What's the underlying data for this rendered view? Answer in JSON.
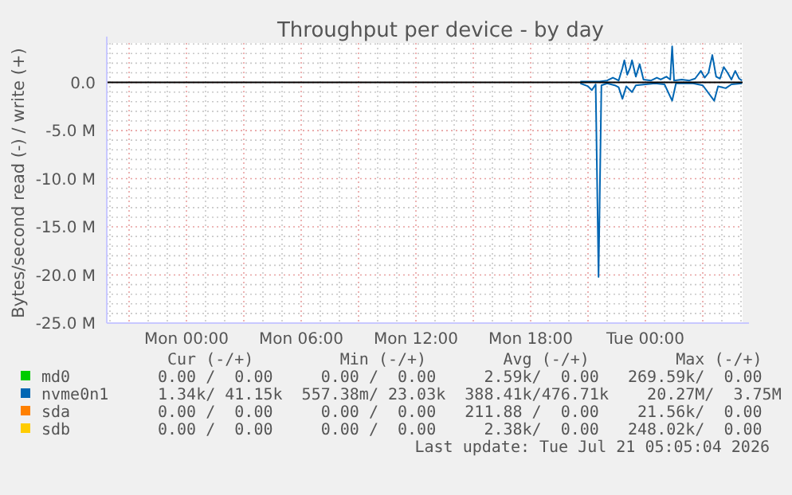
{
  "chart_data": {
    "type": "line",
    "title": "Throughput per device - by day",
    "ylabel": "Bytes/second read (-) / write (+)",
    "xlim": [
      "2026-07-19T19:50",
      "2026-07-21T05:05"
    ],
    "xticks": [
      {
        "value": "2026-07-20T00:00",
        "label": "Mon 00:00"
      },
      {
        "value": "2026-07-20T06:00",
        "label": "Mon 06:00"
      },
      {
        "value": "2026-07-20T12:00",
        "label": "Mon 12:00"
      },
      {
        "value": "2026-07-20T18:00",
        "label": "Mon 18:00"
      },
      {
        "value": "2026-07-21T00:00",
        "label": "Tue 00:00"
      }
    ],
    "ylim": [
      -25,
      4.1
    ],
    "yticks": [
      {
        "value": 0,
        "label": "0.0"
      },
      {
        "value": -5,
        "label": "-5.0 M"
      },
      {
        "value": -10,
        "label": "-10.0 M"
      },
      {
        "value": -15,
        "label": "-15.0 M"
      },
      {
        "value": -20,
        "label": "-20.0 M"
      },
      {
        "value": -25,
        "label": "-25.0 M"
      }
    ],
    "grid": true,
    "legend": "bottom",
    "line_style": "solid",
    "marker": "none",
    "ref_lines": [
      {
        "axis": "y",
        "value": 0,
        "color": "#000000"
      }
    ],
    "series": [
      {
        "name": "md0",
        "color": "#00cc00",
        "values": [
          null
        ]
      },
      {
        "color": "#0066b3",
        "x": [
          "2026-07-20T20:36",
          "2026-07-20T21:00",
          "2026-07-20T21:12",
          "2026-07-20T21:24",
          "2026-07-20T21:33",
          "2026-07-20T21:42",
          "2026-07-20T22:00",
          "2026-07-20T22:24",
          "2026-07-20T22:36",
          "2026-07-20T22:48",
          "2026-07-20T23:00",
          "2026-07-20T23:18",
          "2026-07-20T23:30",
          "2026-07-21T00:00",
          "2026-07-21T00:30",
          "2026-07-21T01:00",
          "2026-07-21T01:24",
          "2026-07-21T01:36",
          "2026-07-21T02:30",
          "2026-07-21T03:00",
          "2026-07-21T03:36",
          "2026-07-21T03:48",
          "2026-07-21T04:12",
          "2026-07-21T04:30",
          "2026-07-21T05:03"
        ],
        "values": [
          -0.1,
          -0.4,
          -0.8,
          -0.2,
          -20.2,
          -0.3,
          -0.1,
          -0.3,
          -0.5,
          -1.7,
          -0.4,
          -1.0,
          -0.3,
          -0.2,
          -0.1,
          -0.2,
          -1.9,
          -0.1,
          -0.1,
          -0.3,
          -1.9,
          -0.4,
          -0.6,
          -0.2,
          -0.1
        ]
      },
      {
        "name": "nvme0n1",
        "color": "#0066b3",
        "x": [
          "2026-07-20T20:36",
          "2026-07-20T21:12",
          "2026-07-20T21:36",
          "2026-07-20T22:00",
          "2026-07-20T22:18",
          "2026-07-20T22:36",
          "2026-07-20T22:48",
          "2026-07-20T22:54",
          "2026-07-20T23:03",
          "2026-07-20T23:12",
          "2026-07-20T23:18",
          "2026-07-20T23:30",
          "2026-07-20T23:42",
          "2026-07-20T23:54",
          "2026-07-21T00:18",
          "2026-07-21T00:36",
          "2026-07-21T00:48",
          "2026-07-21T01:06",
          "2026-07-21T01:18",
          "2026-07-21T01:24",
          "2026-07-21T01:30",
          "2026-07-21T01:54",
          "2026-07-21T02:18",
          "2026-07-21T02:36",
          "2026-07-21T02:54",
          "2026-07-21T03:06",
          "2026-07-21T03:18",
          "2026-07-21T03:30",
          "2026-07-21T03:42",
          "2026-07-21T03:54",
          "2026-07-21T04:06",
          "2026-07-21T04:18",
          "2026-07-21T04:30",
          "2026-07-21T04:42",
          "2026-07-21T04:54",
          "2026-07-21T05:03"
        ],
        "values": [
          0.1,
          0.1,
          0.1,
          0.2,
          0.5,
          0.2,
          1.5,
          2.3,
          0.8,
          1.5,
          2.3,
          0.6,
          1.9,
          0.3,
          0.2,
          0.5,
          0.3,
          0.6,
          0.3,
          3.75,
          0.2,
          0.3,
          0.2,
          0.4,
          1.2,
          0.5,
          1.0,
          2.85,
          0.6,
          0.4,
          1.6,
          1.0,
          0.3,
          1.2,
          0.4,
          0.2
        ]
      },
      {
        "name": "sda",
        "color": "#ff8000",
        "values": [
          null
        ]
      },
      {
        "name": "sdb",
        "color": "#ffcc00",
        "values": [
          null
        ]
      }
    ],
    "annotations": [
      " Cur (-/+)         Min (-/+)        Avg (-/+)         Max (-/+)",
      "0.00 /  0.00     0.00 /  0.00     2.59k/  0.00   269.59k/  0.00",
      "1.34k/ 41.15k  557.38m/ 23.03k  388.41k/476.71k    20.27M/  3.75M",
      "0.00 /  0.00     0.00 /  0.00   211.88 /  0.00    21.56k/  0.00",
      "0.00 /  0.00     0.00 /  0.00     2.38k/  0.00   248.02k/  0.00",
      "Last update: Tue Jul 21 05:05:04 2026"
    ]
  }
}
